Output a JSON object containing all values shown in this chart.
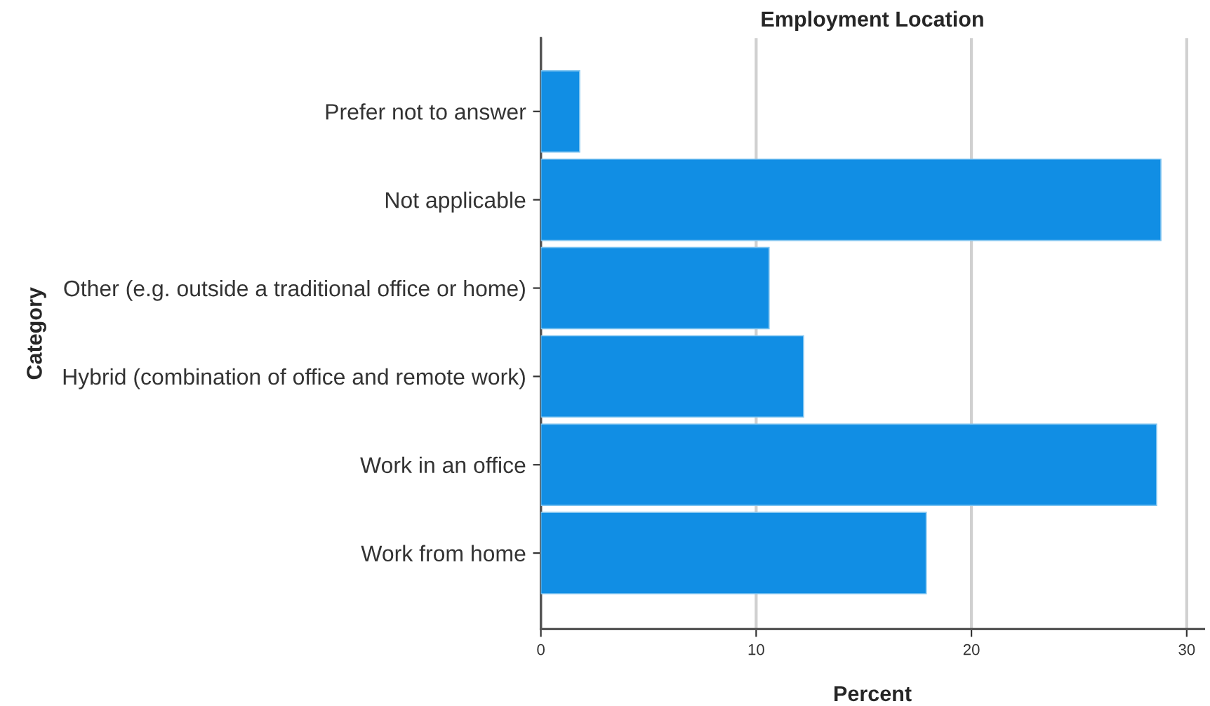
{
  "chart_data": {
    "type": "bar",
    "orientation": "horizontal",
    "title": "Employment Location",
    "xlabel": "Percent",
    "ylabel": "Category",
    "categories": [
      "Prefer not to answer",
      "Not applicable",
      "Other (e.g. outside a traditional office or home)",
      "Hybrid (combination of office and remote work)",
      "Work in an office",
      "Work from home"
    ],
    "values": [
      1.8,
      28.8,
      10.6,
      12.2,
      28.6,
      17.9
    ],
    "color": "#118ee4",
    "xlim": [
      0,
      30.8
    ],
    "xticks": [
      0,
      10,
      20,
      30
    ],
    "grid": "x"
  }
}
